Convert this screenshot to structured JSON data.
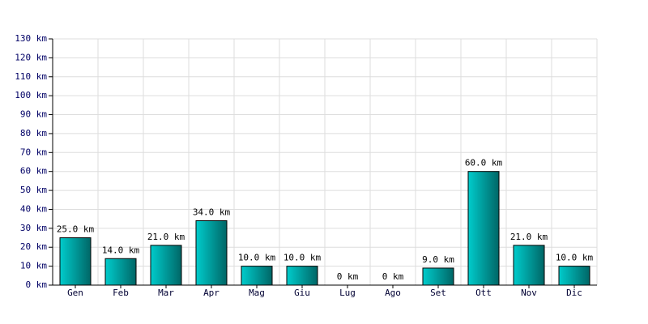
{
  "chart_data": {
    "type": "bar",
    "categories": [
      "Gen",
      "Feb",
      "Mar",
      "Apr",
      "Mag",
      "Giu",
      "Lug",
      "Ago",
      "Set",
      "Ott",
      "Nov",
      "Dic"
    ],
    "values": [
      25,
      14,
      21,
      34,
      10,
      10,
      0,
      0,
      9,
      60,
      21,
      10
    ],
    "value_labels": [
      "25.0 km",
      "14.0 km",
      "21.0 km",
      "34.0 km",
      "10.0 km",
      "10.0 km",
      "0 km",
      "0 km",
      "9.0 km",
      "60.0 km",
      "21.0 km",
      "10.0 km"
    ],
    "color": "#00cccc",
    "ylim": [
      0,
      130
    ],
    "yticks": [
      {
        "value": 0,
        "label": "0 km"
      },
      {
        "value": 10,
        "label": "10 km"
      },
      {
        "value": 20,
        "label": "20 km"
      },
      {
        "value": 30,
        "label": "30 km"
      },
      {
        "value": 40,
        "label": "40 km"
      },
      {
        "value": 50,
        "label": "50 km"
      },
      {
        "value": 60,
        "label": "60 km"
      },
      {
        "value": 70,
        "label": "70 km"
      },
      {
        "value": 80,
        "label": "80 km"
      },
      {
        "value": 90,
        "label": "90 km"
      },
      {
        "value": 100,
        "label": "100 km"
      },
      {
        "value": 110,
        "label": "110 km"
      },
      {
        "value": 120,
        "label": "120 km"
      },
      {
        "value": 130,
        "label": "130 km"
      }
    ],
    "grid": true
  }
}
